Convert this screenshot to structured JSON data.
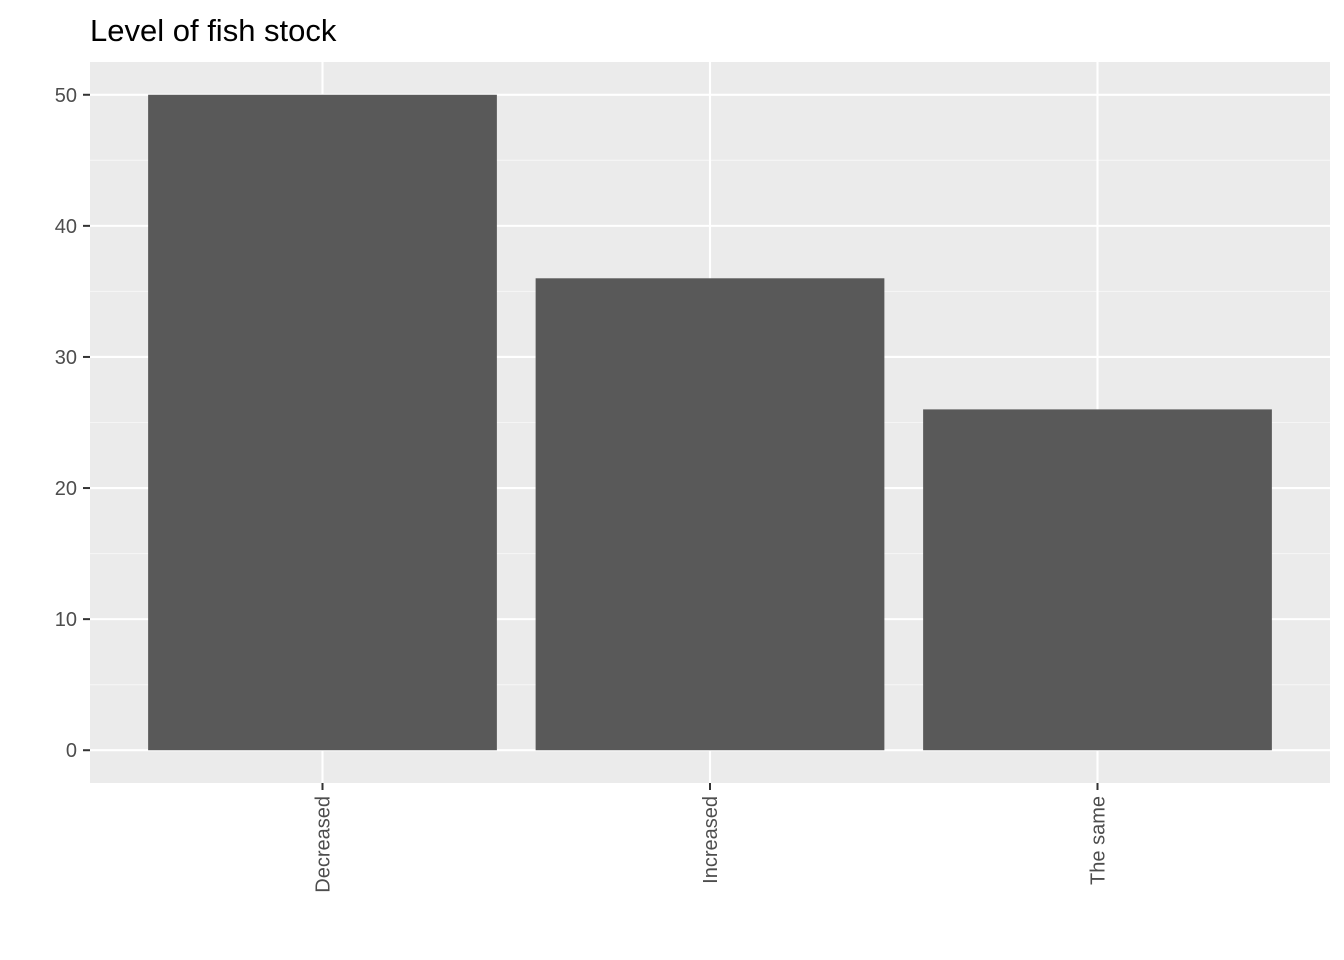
{
  "chart_data": {
    "type": "bar",
    "title": "Level of fish stock",
    "xlabel": "",
    "ylabel": "",
    "categories": [
      "Decreased",
      "Increased",
      "The same"
    ],
    "values": [
      50,
      36,
      26
    ],
    "ylim": [
      -2.5,
      52.5
    ],
    "y_ticks": [
      0,
      10,
      20,
      30,
      40,
      50
    ],
    "grid": true,
    "x_tick_label_rotation": "vertical",
    "colors": {
      "panel_background": "#ebebeb",
      "grid_major": "#ffffff",
      "grid_minor": "#f5f5f5",
      "bar_fill": "#595959",
      "tick": "#333333",
      "tick_label": "#4d4d4d",
      "title": "#000000"
    }
  }
}
